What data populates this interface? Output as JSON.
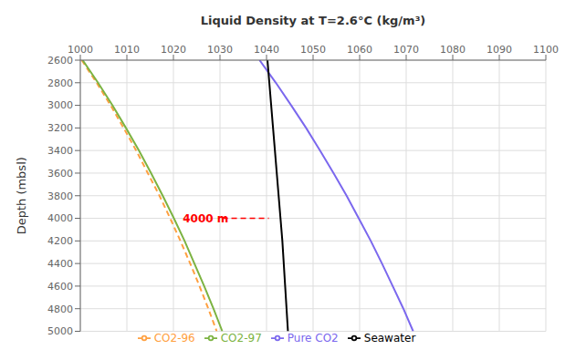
{
  "chart_data": {
    "type": "line",
    "xlabel": "Liquid Density at T=2.6°C (kg/m³)",
    "ylabel": "Depth (mbsl)",
    "xlim": [
      1000,
      1100
    ],
    "ylim": [
      5000,
      2600
    ],
    "xticks": [
      1000,
      1010,
      1020,
      1030,
      1040,
      1050,
      1060,
      1070,
      1080,
      1090,
      1100
    ],
    "yticks": [
      2600,
      2800,
      3000,
      3200,
      3400,
      3600,
      3800,
      4000,
      4200,
      4400,
      4600,
      4800,
      5000
    ],
    "grid": true,
    "legend": "bottom",
    "series": [
      {
        "name": "CO2-96",
        "color": "#FFA040",
        "line_style": "dashed",
        "x": [
          1000.3,
          1003.5,
          1006.5,
          1009.3,
          1012.0,
          1014.5,
          1017.0,
          1019.3,
          1021.5,
          1023.6,
          1025.6,
          1027.5,
          1029.3
        ],
        "y": [
          2600,
          2800,
          3000,
          3200,
          3400,
          3600,
          3800,
          4000,
          4200,
          4400,
          4600,
          4800,
          5000
        ]
      },
      {
        "name": "CO2-97",
        "color": "#7CB342",
        "line_style": "solid",
        "x": [
          1000.5,
          1003.8,
          1006.9,
          1009.8,
          1012.6,
          1015.2,
          1017.7,
          1020.1,
          1022.4,
          1024.5,
          1026.6,
          1028.6,
          1030.5
        ],
        "y": [
          2600,
          2800,
          3000,
          3200,
          3400,
          3600,
          3800,
          4000,
          4200,
          4400,
          4600,
          4800,
          5000
        ]
      },
      {
        "name": "Pure CO2",
        "color": "#7B68EE",
        "line_style": "solid",
        "x": [
          1038.5,
          1042.0,
          1045.3,
          1048.5,
          1051.5,
          1054.4,
          1057.2,
          1059.8,
          1062.4,
          1064.8,
          1067.1,
          1069.4,
          1071.5
        ],
        "y": [
          2600,
          2800,
          3000,
          3200,
          3400,
          3600,
          3800,
          4000,
          4200,
          4400,
          4600,
          4800,
          5000
        ]
      },
      {
        "name": "Seawater",
        "color": "#000000",
        "line_style": "solid",
        "x": [
          1040.2,
          1040.6,
          1041.0,
          1041.4,
          1041.8,
          1042.2,
          1042.6,
          1043.0,
          1043.4,
          1043.7,
          1044.0,
          1044.3,
          1044.6
        ],
        "y": [
          2600,
          2800,
          3000,
          3200,
          3400,
          3600,
          3800,
          4000,
          4200,
          4400,
          4600,
          4800,
          5000
        ]
      }
    ],
    "annotation": {
      "text": "4000 m",
      "x": 1022,
      "y": 4000,
      "line_x": [
        1030.5,
        1040.5
      ],
      "color": "red",
      "line_style": "dashed"
    }
  }
}
